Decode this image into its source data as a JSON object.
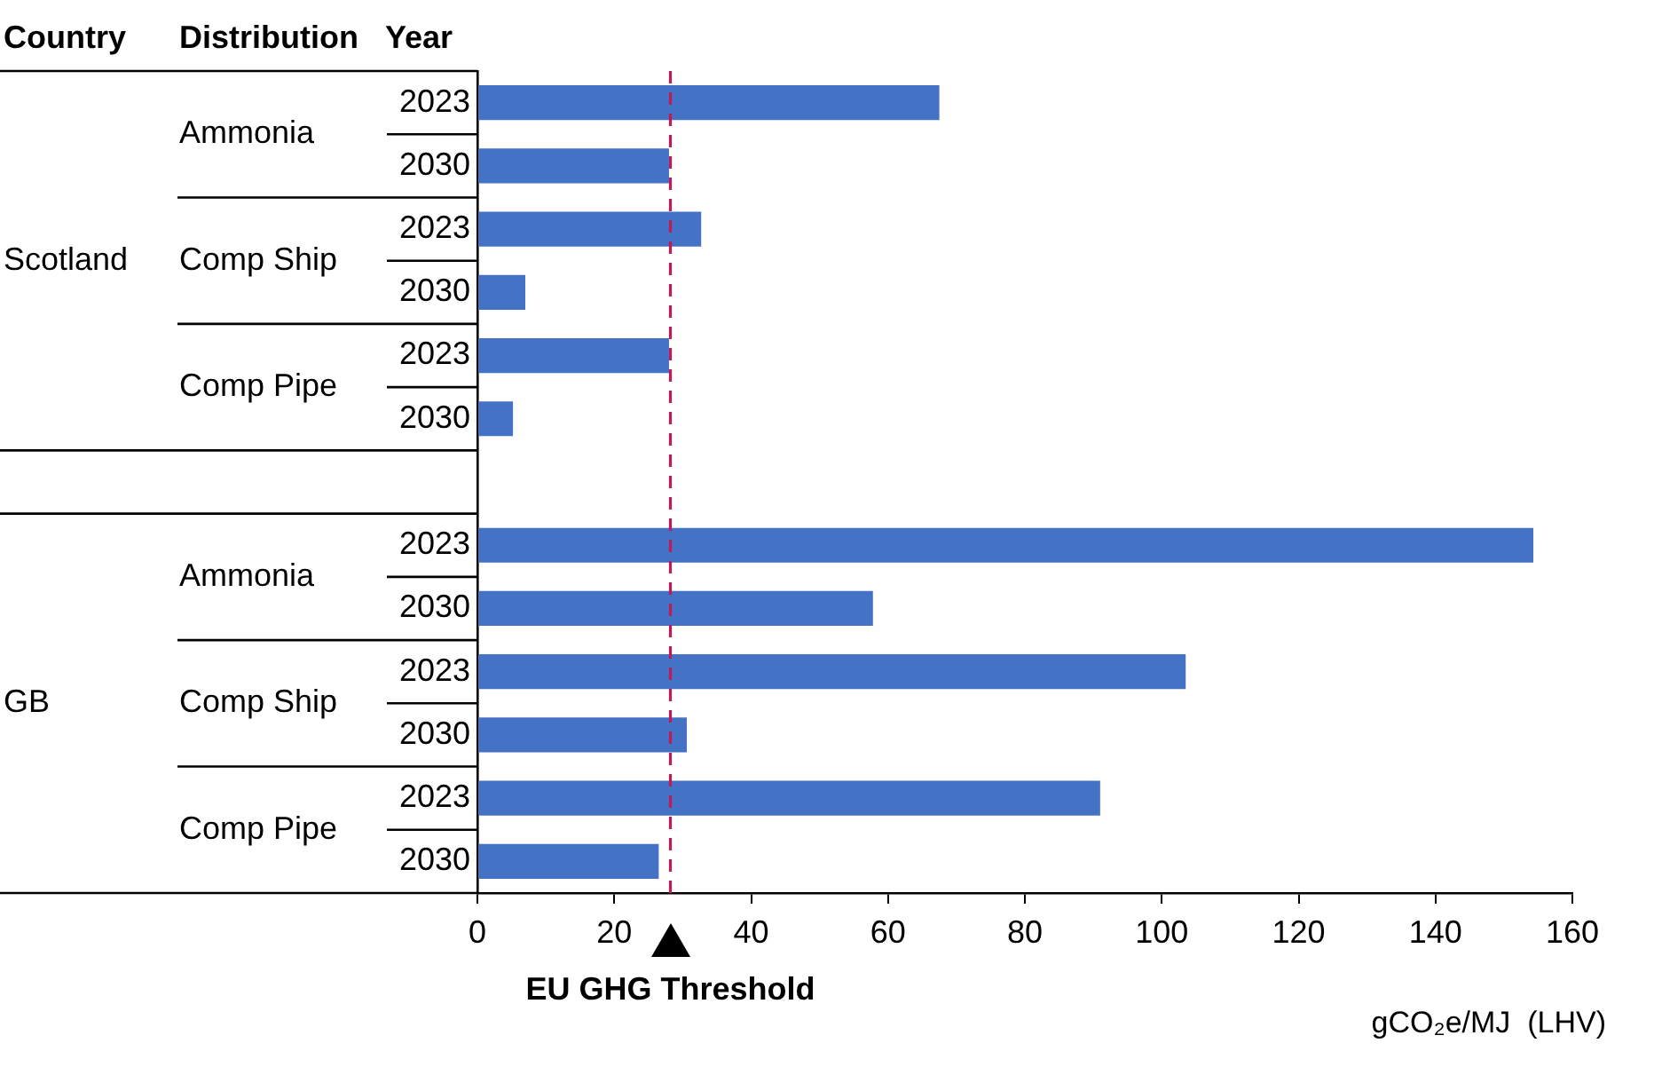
{
  "chart_data": {
    "type": "bar",
    "orientation": "horizontal",
    "xlabel": "gCO₂e/MJ  (LHV)",
    "categories": [
      "2023",
      "2030",
      "2023",
      "2030",
      "2023",
      "2030",
      null,
      "2023",
      "2030",
      "2023",
      "2030",
      "2023",
      "2030"
    ],
    "values": [
      67.5,
      28,
      32.7,
      7,
      28,
      5.2,
      null,
      154.3,
      57.8,
      103.5,
      30.6,
      91,
      26.5
    ],
    "color": "#4472c4",
    "xlim": [
      0,
      160
    ],
    "xticks": [
      0,
      20,
      40,
      60,
      80,
      100,
      120,
      140,
      160
    ],
    "grid": false,
    "legend": false,
    "ref_lines": [
      {
        "axis": "x",
        "value": 28.2,
        "label": "EU GHG Threshold",
        "color": "#c0185a",
        "line_style": "dashed"
      }
    ],
    "annotations": [
      "Country",
      "Distribution",
      "Year",
      "Scotland",
      "Ammonia",
      "Comp Ship",
      "Comp Pipe",
      "GB",
      "Ammonia",
      "Comp Ship",
      "Comp Pipe"
    ]
  }
}
